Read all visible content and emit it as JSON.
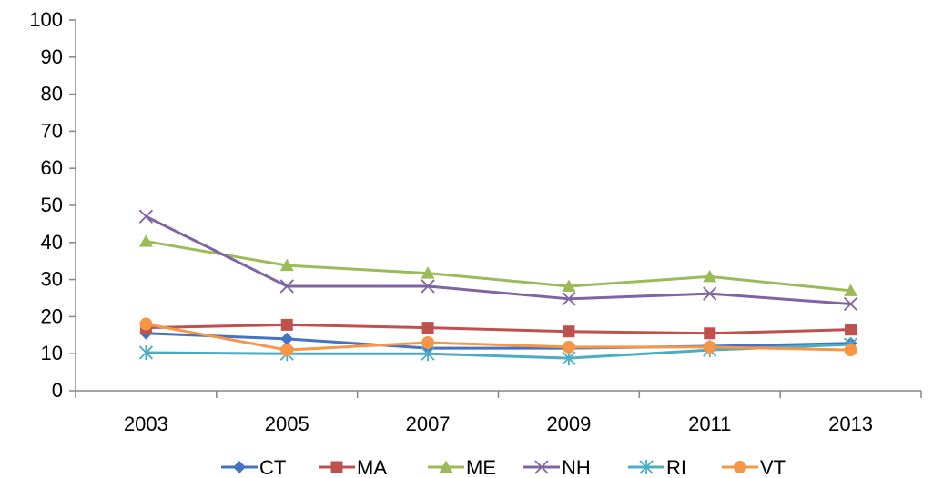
{
  "chart_data": {
    "type": "line",
    "title": "",
    "xlabel": "",
    "ylabel": "",
    "categories": [
      "2003",
      "2005",
      "2007",
      "2009",
      "2011",
      "2013"
    ],
    "ylim": [
      0,
      100
    ],
    "yticks": [
      "0",
      "10",
      "20",
      "30",
      "40",
      "50",
      "60",
      "70",
      "80",
      "90",
      "100"
    ],
    "grid": false,
    "legend_position": "bottom",
    "series": [
      {
        "name": "CT",
        "color": "#4472C4",
        "marker": "diamond",
        "values": [
          15.5,
          14,
          11.5,
          11.5,
          12,
          12.8
        ]
      },
      {
        "name": "MA",
        "color": "#C0504D",
        "marker": "square",
        "values": [
          17,
          17.8,
          17,
          16,
          15.5,
          16.5
        ]
      },
      {
        "name": "ME",
        "color": "#9BBB59",
        "marker": "triangle",
        "values": [
          40.3,
          33.8,
          31.7,
          28.2,
          30.8,
          27
        ]
      },
      {
        "name": "NH",
        "color": "#8064A2",
        "marker": "x",
        "values": [
          47,
          28.2,
          28.2,
          24.8,
          26.2,
          23.4
        ]
      },
      {
        "name": "RI",
        "color": "#4BACC6",
        "marker": "star",
        "values": [
          10.3,
          10,
          10,
          8.8,
          11,
          12.5
        ]
      },
      {
        "name": "VT",
        "color": "#F79646",
        "marker": "circle",
        "values": [
          18,
          11,
          13,
          11.8,
          11.8,
          11
        ]
      }
    ]
  }
}
